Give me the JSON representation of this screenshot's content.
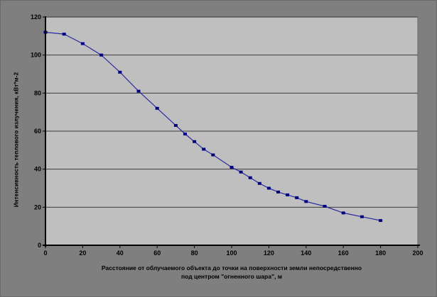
{
  "chart": {
    "ylabel": "Интенсивность теплового излучения, кВт*м-2",
    "xlabel": "Расстояние от облучаемого объекта до точки на поверхности земли непосредственно под центром \"огненного шара\", м",
    "xlabel_lines": [
      "Расстояние от облучаемого объекта до точки на поверхности земли непосредственно",
      "под центром \"огненного шара\", м"
    ]
  },
  "colors": {
    "chart_background": "#7f7f7f",
    "plot_background": "#bfbfbf",
    "gridline": "#3c3c3c",
    "plot_border_top": "#4a4a4a",
    "plot_border_right": "#707070",
    "axis": "#000000",
    "line": "#2c2ca0",
    "marker": "#000080",
    "text": "#000000"
  },
  "chart_data": {
    "type": "line",
    "title": "",
    "xlabel": "Расстояние от облучаемого объекта до точки на поверхности земли непосредственно под центром \"огненного шара\", м",
    "ylabel": "Интенсивность теплового излучения, кВт*м-2",
    "xlim": [
      0,
      200
    ],
    "ylim": [
      0,
      120
    ],
    "xticks": [
      0,
      20,
      40,
      60,
      80,
      100,
      120,
      140,
      160,
      180,
      200
    ],
    "yticks": [
      0,
      20,
      40,
      60,
      80,
      100,
      120
    ],
    "grid": "horizontal",
    "legend": "none",
    "marker": "square",
    "series": [
      {
        "x": [
          0,
          10,
          20,
          30,
          40,
          50,
          60,
          70,
          75,
          80,
          85,
          90,
          100,
          105,
          110,
          115,
          120,
          125,
          130,
          135,
          140,
          150,
          160,
          170,
          180
        ],
        "y": [
          112,
          111,
          106,
          100,
          91,
          81,
          72,
          63,
          58.5,
          54.5,
          50.5,
          47.5,
          41,
          38.5,
          35.5,
          32.5,
          30,
          28,
          26.5,
          25,
          23,
          20.5,
          17,
          15,
          13
        ]
      }
    ]
  }
}
